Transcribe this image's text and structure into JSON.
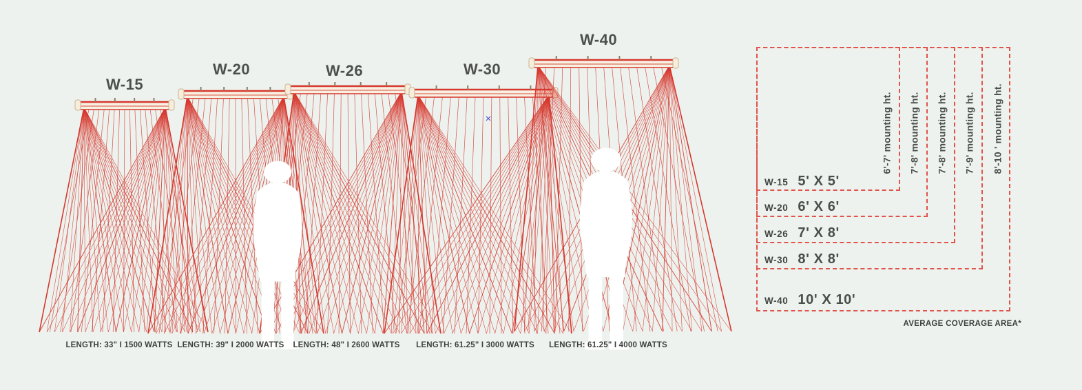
{
  "colors": {
    "background": "#edf2ee",
    "line_red": "#d6382e",
    "dash_red": "#e0534a",
    "text_dark": "#4b4d4a"
  },
  "heaters": [
    {
      "model": "W-15",
      "spec": "LENGTH: 33\" I 1500 WATTS",
      "coverage": "5' X 5'",
      "mounting": "6'-7' mounting ht."
    },
    {
      "model": "W-20",
      "spec": "LENGTH: 39\" I 2000 WATTS",
      "coverage": "6' X 6'",
      "mounting": "7'-8' mounting ht."
    },
    {
      "model": "W-26",
      "spec": "LENGTH: 48\" I 2600 WATTS",
      "coverage": "7' X 8'",
      "mounting": "7'-8' mounting ht."
    },
    {
      "model": "W-30",
      "spec": "LENGTH: 61.25\" I 3000 WATTS",
      "coverage": "8' X 8'",
      "mounting": "7'-9' mounting ht."
    },
    {
      "model": "W-40",
      "spec": "LENGTH: 61.25\" I 4000 WATTS",
      "coverage": "10' X 10'",
      "mounting": "8'-10 ' mounting ht."
    }
  ],
  "footnote": "AVERAGE COVERAGE AREA*"
}
